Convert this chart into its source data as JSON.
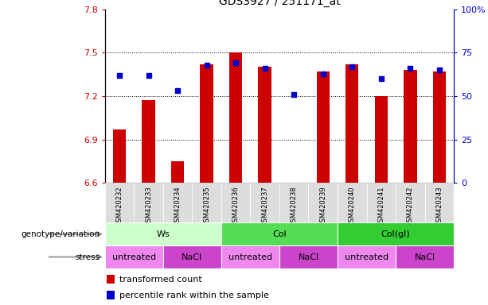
{
  "title": "GDS3927 / 251171_at",
  "samples": [
    "GSM420232",
    "GSM420233",
    "GSM420234",
    "GSM420235",
    "GSM420236",
    "GSM420237",
    "GSM420238",
    "GSM420239",
    "GSM420240",
    "GSM420241",
    "GSM420242",
    "GSM420243"
  ],
  "bar_values": [
    6.97,
    7.17,
    6.75,
    7.42,
    7.5,
    7.4,
    6.6,
    7.37,
    7.42,
    7.2,
    7.38,
    7.37
  ],
  "percentile_values": [
    62,
    62,
    53,
    68,
    69,
    66,
    51,
    63,
    67,
    60,
    66,
    65
  ],
  "ylim_left": [
    6.6,
    7.8
  ],
  "ylim_right": [
    0,
    100
  ],
  "yticks_left": [
    6.6,
    6.9,
    7.2,
    7.5,
    7.8
  ],
  "yticks_right": [
    0,
    25,
    50,
    75,
    100
  ],
  "ytick_labels_left": [
    "6.6",
    "6.9",
    "7.2",
    "7.5",
    "7.8"
  ],
  "ytick_labels_right": [
    "0",
    "25",
    "50",
    "75",
    "100%"
  ],
  "hgrid_values": [
    7.5,
    7.2,
    6.9
  ],
  "bar_color": "#cc0000",
  "percentile_color": "#0000cc",
  "bar_baseline": 6.6,
  "genotype_groups": [
    {
      "label": "Ws",
      "start": 0,
      "end": 4,
      "color": "#ccffcc"
    },
    {
      "label": "Col",
      "start": 4,
      "end": 8,
      "color": "#55dd55"
    },
    {
      "label": "Col(gl)",
      "start": 8,
      "end": 12,
      "color": "#33cc33"
    }
  ],
  "stress_groups": [
    {
      "label": "untreated",
      "start": 0,
      "end": 2,
      "color": "#ee88ee"
    },
    {
      "label": "NaCl",
      "start": 2,
      "end": 4,
      "color": "#cc44cc"
    },
    {
      "label": "untreated",
      "start": 4,
      "end": 6,
      "color": "#ee88ee"
    },
    {
      "label": "NaCl",
      "start": 6,
      "end": 8,
      "color": "#cc44cc"
    },
    {
      "label": "untreated",
      "start": 8,
      "end": 10,
      "color": "#ee88ee"
    },
    {
      "label": "NaCl",
      "start": 10,
      "end": 12,
      "color": "#cc44cc"
    }
  ],
  "legend_bar_label": "transformed count",
  "legend_pct_label": "percentile rank within the sample",
  "genotype_label": "genotype/variation",
  "stress_label": "stress",
  "tick_color_left": "#cc0000",
  "tick_color_right": "#0000cc",
  "xtick_bg_color": "#dddddd",
  "sample_fontsize": 6.0,
  "label_fontsize": 8,
  "row_fontsize": 8
}
